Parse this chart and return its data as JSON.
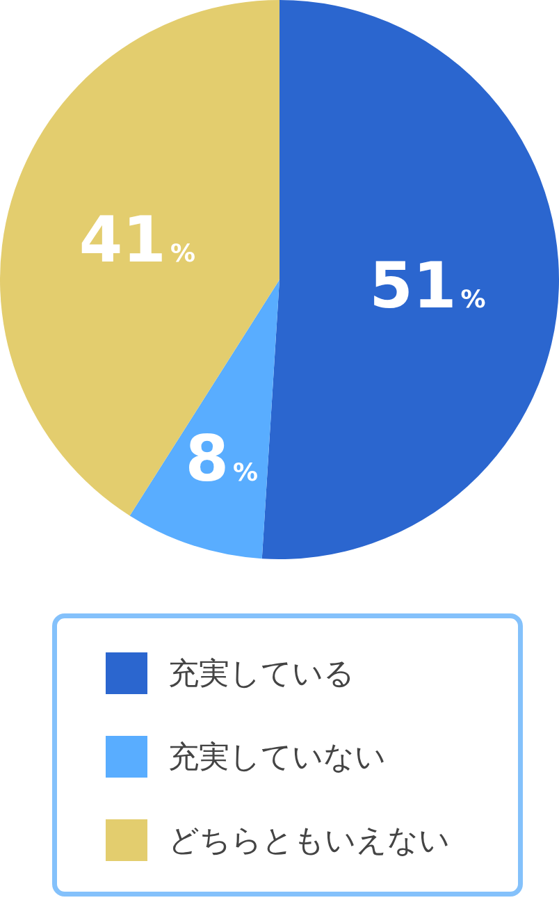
{
  "chart_data": {
    "type": "pie",
    "categories": [
      "充実している",
      "充実していない",
      "どちらともいえない"
    ],
    "values": [
      51,
      8,
      41
    ],
    "colors": [
      "#2b66cf",
      "#59adff",
      "#e3cd6e"
    ],
    "value_labels": [
      "51%",
      "8%",
      "41%"
    ],
    "legend": "bottom"
  }
}
